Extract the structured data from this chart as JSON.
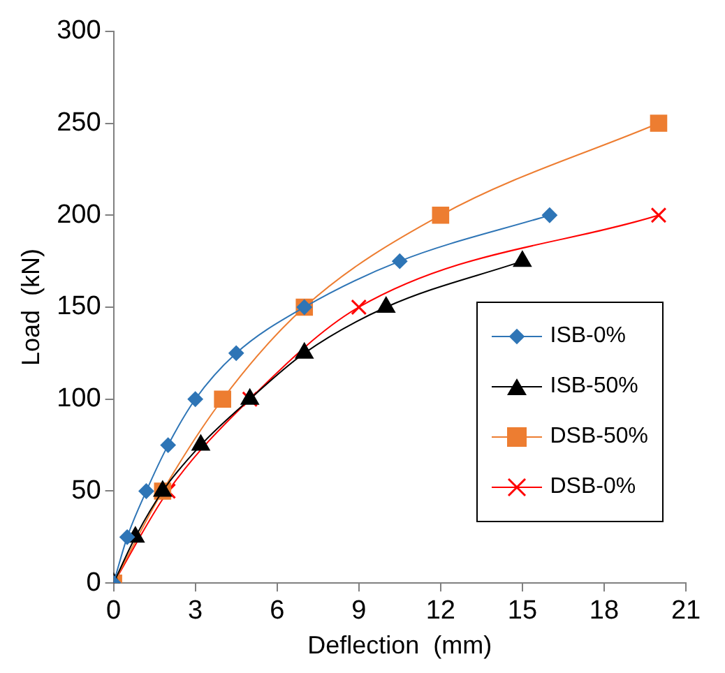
{
  "chart_data": {
    "type": "line",
    "xlabel": "Deflection  (mm)",
    "ylabel": "Load  (kN)",
    "xlim": [
      0,
      21
    ],
    "xticks": [
      0,
      3,
      6,
      9,
      12,
      15,
      18,
      21
    ],
    "ylim": [
      0,
      300
    ],
    "yticks": [
      0,
      50,
      100,
      150,
      200,
      250,
      300
    ],
    "grid": false,
    "legend": "bottom right",
    "series": [
      {
        "name": "ISB-0%",
        "color": "#2e75b6",
        "marker": "diamond",
        "x": [
          0,
          0.5,
          1.2,
          2,
          3,
          4.5,
          7,
          10.5,
          16
        ],
        "values": [
          0,
          25,
          50,
          75,
          100,
          125,
          150,
          175,
          200
        ]
      },
      {
        "name": "ISB-50%",
        "color": "#000000",
        "marker": "triangle",
        "x": [
          0,
          0.8,
          1.8,
          3.2,
          5,
          7,
          10,
          15
        ],
        "values": [
          0,
          25,
          50,
          75,
          100,
          125,
          150,
          175
        ]
      },
      {
        "name": "DSB-50%",
        "color": "#ed7d31",
        "marker": "square",
        "x": [
          0,
          1.8,
          4,
          7,
          12,
          20
        ],
        "values": [
          0,
          50,
          100,
          150,
          200,
          250
        ]
      },
      {
        "name": "DSB-0%",
        "color": "#ff0000",
        "marker": "cross",
        "x": [
          0,
          2,
          5,
          9,
          20
        ],
        "values": [
          0,
          50,
          100,
          150,
          200
        ]
      }
    ]
  }
}
